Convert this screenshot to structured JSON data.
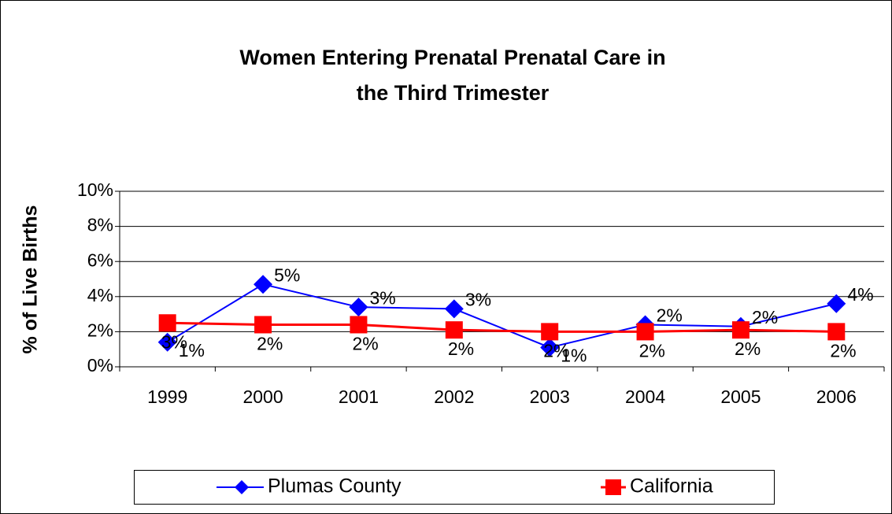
{
  "chart_data": {
    "type": "line",
    "title": "Women Entering Prenatal Prenatal Care in the Third Trimester",
    "y_label": "% of Live Births",
    "categories": [
      "1999",
      "2000",
      "2001",
      "2002",
      "2003",
      "2004",
      "2005",
      "2006"
    ],
    "series": [
      {
        "name": "Plumas County",
        "color": "#0000ff",
        "marker": "diamond",
        "values": [
          1.4,
          4.7,
          3.4,
          3.3,
          1.1,
          2.4,
          2.3,
          3.6
        ],
        "value_labels": [
          "1%",
          "5%",
          "3%",
          "3%",
          "1%",
          "2%",
          "2%",
          "4%"
        ]
      },
      {
        "name": "California",
        "color": "#ff0000",
        "marker": "square",
        "values": [
          2.5,
          2.4,
          2.4,
          2.1,
          2.0,
          2.0,
          2.1,
          2.0
        ],
        "value_labels": [
          "3%",
          "2%",
          "2%",
          "2%",
          "2%",
          "2%",
          "2%",
          "2%"
        ]
      }
    ],
    "ylim": [
      0,
      10
    ],
    "yticks": [
      {
        "value": 0,
        "label": "0%"
      },
      {
        "value": 2,
        "label": "2%"
      },
      {
        "value": 4,
        "label": "4%"
      },
      {
        "value": 6,
        "label": "6%"
      },
      {
        "value": 8,
        "label": "8%"
      },
      {
        "value": 10,
        "label": "10%"
      }
    ],
    "grid": true,
    "legend": "bottom"
  }
}
